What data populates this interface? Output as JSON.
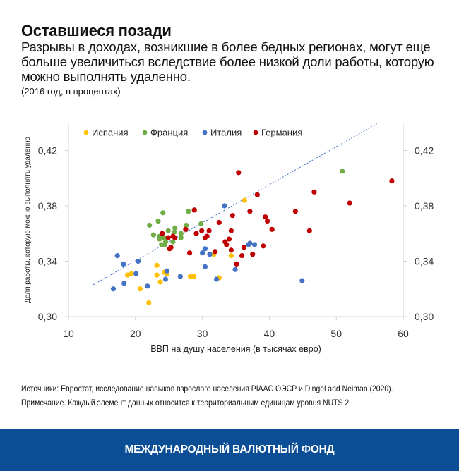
{
  "header": {
    "title": "Оставшиеся позади",
    "subtitle": "Разрывы в доходах, возникшие в более бедных регионах, могут еще больше увеличиться вследствие более низкой доли работы, которую можно выполнять удаленно.",
    "unit_note": "(2016 год, в процентах)"
  },
  "chart_data": {
    "type": "scatter",
    "xlabel": "ВВП на душу населения (в тысячах евро)",
    "ylabel": "Доля работы, которую можно выполнять удаленно",
    "xlim": [
      10,
      60
    ],
    "ylim": [
      0.3,
      0.44
    ],
    "x_ticks": [
      "10",
      "20",
      "30",
      "40",
      "50",
      "60"
    ],
    "y_ticks": [
      "0,30",
      "0,34",
      "0,38",
      "0,42"
    ],
    "y_axis_both_sides": true,
    "grid": false,
    "legend": "top-left",
    "trendline": {
      "style": "dotted",
      "color": "#4472c4",
      "points": [
        [
          13.7,
          0.323
        ],
        [
          56.3,
          0.44
        ]
      ]
    },
    "series": [
      {
        "name": "Испания",
        "color": "#ffc000",
        "points": [
          [
            36.3,
            0.384
          ],
          [
            23.2,
            0.337
          ],
          [
            18.8,
            0.33
          ],
          [
            19.4,
            0.331
          ],
          [
            23.2,
            0.33
          ],
          [
            24.3,
            0.332
          ],
          [
            24.7,
            0.331
          ],
          [
            20.7,
            0.32
          ],
          [
            23.7,
            0.325
          ],
          [
            22.0,
            0.31
          ],
          [
            28.2,
            0.329
          ],
          [
            31.7,
            0.345
          ],
          [
            34.3,
            0.344
          ],
          [
            28.7,
            0.329
          ],
          [
            32.5,
            0.328
          ]
        ]
      },
      {
        "name": "Франция",
        "color": "#70ad47",
        "points": [
          [
            24.1,
            0.375
          ],
          [
            27.9,
            0.376
          ],
          [
            22.1,
            0.366
          ],
          [
            23.4,
            0.369
          ],
          [
            22.7,
            0.359
          ],
          [
            24.9,
            0.362
          ],
          [
            25.9,
            0.364
          ],
          [
            25.8,
            0.361
          ],
          [
            26.8,
            0.36
          ],
          [
            26.8,
            0.357
          ],
          [
            27.6,
            0.366
          ],
          [
            23.6,
            0.358
          ],
          [
            23.6,
            0.356
          ],
          [
            24.3,
            0.357
          ],
          [
            24.5,
            0.354
          ],
          [
            25.6,
            0.354
          ],
          [
            23.9,
            0.352
          ],
          [
            24.4,
            0.352
          ],
          [
            29.8,
            0.367
          ],
          [
            50.9,
            0.405
          ]
        ]
      },
      {
        "name": "Италия",
        "color": "#4472c4",
        "points": [
          [
            17.3,
            0.344
          ],
          [
            18.2,
            0.338
          ],
          [
            20.4,
            0.34
          ],
          [
            20.1,
            0.331
          ],
          [
            24.7,
            0.333
          ],
          [
            24.5,
            0.327
          ],
          [
            18.3,
            0.324
          ],
          [
            16.7,
            0.32
          ],
          [
            21.8,
            0.322
          ],
          [
            26.7,
            0.329
          ],
          [
            33.3,
            0.38
          ],
          [
            30.4,
            0.349
          ],
          [
            30.0,
            0.346
          ],
          [
            31.1,
            0.345
          ],
          [
            30.4,
            0.336
          ],
          [
            32.1,
            0.327
          ],
          [
            34.9,
            0.334
          ],
          [
            36.9,
            0.352
          ],
          [
            37.1,
            0.353
          ],
          [
            37.8,
            0.352
          ],
          [
            44.9,
            0.326
          ]
        ]
      },
      {
        "name": "Германия",
        "color": "#c00000",
        "points": [
          [
            24.0,
            0.36
          ],
          [
            24.9,
            0.357
          ],
          [
            25.6,
            0.358
          ],
          [
            25.9,
            0.357
          ],
          [
            27.5,
            0.363
          ],
          [
            25.3,
            0.35
          ],
          [
            25.1,
            0.349
          ],
          [
            28.1,
            0.346
          ],
          [
            35.4,
            0.404
          ],
          [
            38.2,
            0.388
          ],
          [
            28.8,
            0.377
          ],
          [
            37.1,
            0.376
          ],
          [
            34.5,
            0.373
          ],
          [
            39.4,
            0.372
          ],
          [
            39.7,
            0.369
          ],
          [
            40.4,
            0.363
          ],
          [
            32.5,
            0.368
          ],
          [
            29.9,
            0.362
          ],
          [
            31.0,
            0.362
          ],
          [
            29.1,
            0.36
          ],
          [
            34.3,
            0.362
          ],
          [
            30.4,
            0.357
          ],
          [
            30.7,
            0.358
          ],
          [
            34.0,
            0.356
          ],
          [
            33.4,
            0.354
          ],
          [
            33.6,
            0.352
          ],
          [
            39.1,
            0.351
          ],
          [
            36.2,
            0.35
          ],
          [
            31.9,
            0.347
          ],
          [
            34.3,
            0.348
          ],
          [
            35.9,
            0.344
          ],
          [
            37.5,
            0.345
          ],
          [
            35.1,
            0.338
          ],
          [
            58.3,
            0.398
          ],
          [
            46.7,
            0.39
          ],
          [
            52.0,
            0.382
          ],
          [
            43.9,
            0.376
          ],
          [
            46.0,
            0.362
          ]
        ]
      }
    ]
  },
  "notes": {
    "source": "Источники: Евростат, исследование навыков взрослого населения PIAAC ОЭСР и Dingel and Neiman (2020).",
    "note": "Примечание. Каждый элемент данных относится к территориальным единицам уровня NUTS 2."
  },
  "footer": {
    "brand": "МЕЖДУНАРОДНЫЙ ВАЛЮТНЫЙ ФОНД"
  }
}
